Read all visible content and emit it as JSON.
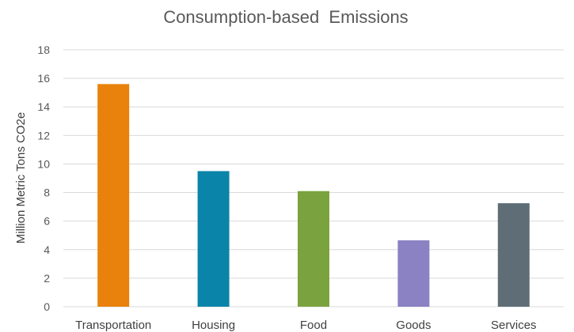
{
  "chart_data": {
    "type": "bar",
    "title": "Consumption-based  Emissions",
    "xlabel": "",
    "ylabel": "Million Metric Tons CO2e",
    "ylim": [
      0,
      18
    ],
    "yticks": [
      0,
      2,
      4,
      6,
      8,
      10,
      12,
      14,
      16,
      18
    ],
    "grid": true,
    "categories": [
      "Transportation",
      "Housing",
      "Food",
      "Goods",
      "Services"
    ],
    "values": [
      15.6,
      9.5,
      8.1,
      4.65,
      7.25
    ],
    "colors": [
      "#E8820C",
      "#0A84A8",
      "#7AA33F",
      "#8A82C2",
      "#5F6D76"
    ]
  }
}
